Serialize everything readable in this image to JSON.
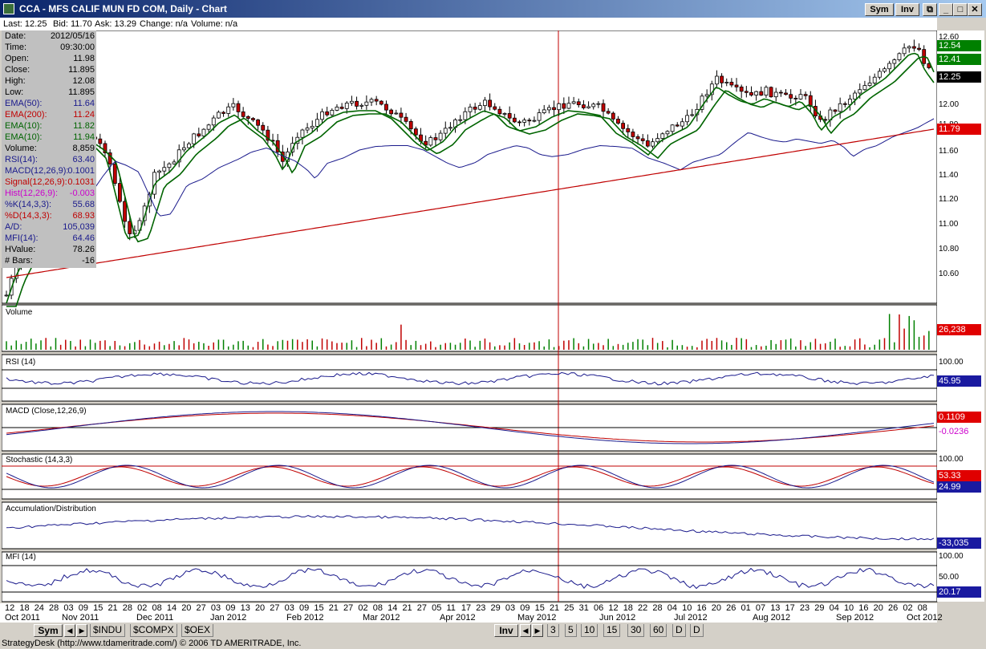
{
  "window": {
    "title": "CCA - MFS CALIF MUN FD COM, Daily - Chart",
    "sym_button": "Sym",
    "inv_button": "Inv"
  },
  "quote": {
    "last": "Last: 12.25",
    "bid": "Bid: 11.70",
    "ask": "Ask: 13.29",
    "change": "Change: n/a",
    "volume": "Volume: n/a"
  },
  "data_panel": [
    {
      "label": "Date:",
      "value": "2012/05/16",
      "color": "#000000"
    },
    {
      "label": "Time:",
      "value": "09:30:00",
      "color": "#000000"
    },
    {
      "label": "Open:",
      "value": "11.98",
      "color": "#000000"
    },
    {
      "label": "Close:",
      "value": "11.895",
      "color": "#000000"
    },
    {
      "label": "High:",
      "value": "12.08",
      "color": "#000000"
    },
    {
      "label": "Low:",
      "value": "11.895",
      "color": "#000000"
    },
    {
      "label": "EMA(50):",
      "value": "11.64",
      "color": "#1a1a8c"
    },
    {
      "label": "EMA(200):",
      "value": "11.24",
      "color": "#c00000"
    },
    {
      "label": "EMA(10):",
      "value": "11.82",
      "color": "#006400"
    },
    {
      "label": "EMA(10):",
      "value": "11.94",
      "color": "#006400"
    },
    {
      "label": "Volume:",
      "value": "8,859",
      "color": "#000000"
    },
    {
      "label": "RSI(14):",
      "value": "63.40",
      "color": "#1a1a8c"
    },
    {
      "label": "MACD(12,26,9):",
      "value": "0.1001",
      "color": "#1a1a8c"
    },
    {
      "label": "Signal(12,26,9):",
      "value": "0.1031",
      "color": "#c00000"
    },
    {
      "label": "Hist(12,26,9):",
      "value": "-0.003",
      "color": "#cc00cc"
    },
    {
      "label": "%K(14,3,3):",
      "value": "55.68",
      "color": "#1a1a8c"
    },
    {
      "label": "%D(14,3,3):",
      "value": "68.93",
      "color": "#c00000"
    },
    {
      "label": "A/D:",
      "value": "105,039",
      "color": "#1a1a8c"
    },
    {
      "label": "MFI(14):",
      "value": "64.46",
      "color": "#1a1a8c"
    },
    {
      "label": "HValue:",
      "value": "78.26",
      "color": "#000000"
    },
    {
      "label": "# Bars:",
      "value": "-16",
      "color": "#000000"
    }
  ],
  "price_panel": {
    "scale": [
      "12.60",
      "12.40",
      "12.20",
      "12.00",
      "11.80",
      "11.60",
      "11.40",
      "11.20",
      "11.00",
      "10.80",
      "10.60"
    ],
    "badges": [
      {
        "text": "12.54",
        "bg": "#008000",
        "fg": "#ffffff"
      },
      {
        "text": "12.41",
        "bg": "#008000",
        "fg": "#ffffff"
      },
      {
        "text": "12.25",
        "bg": "#000000",
        "fg": "#ffffff"
      },
      {
        "text": "11.79",
        "bg": "#e00000",
        "fg": "#ffffff"
      }
    ]
  },
  "volume_panel": {
    "label": "Volume",
    "badge": "26,238"
  },
  "rsi_panel": {
    "label": "RSI (14)",
    "scale_top": "100.00",
    "badge": "45.95"
  },
  "macd_panel": {
    "label": "MACD (Close,12,26,9)",
    "badge_signal": "0.1109",
    "badge_hist": "-0.0236"
  },
  "stoch_panel": {
    "label": "Stochastic (14,3,3)",
    "scale_top": "100.00",
    "badge_d": "53.33",
    "badge_k": "24.99"
  },
  "ad_panel": {
    "label": "Accumulation/Distribution",
    "badge": "-33,035"
  },
  "mfi_panel": {
    "label": "MFI (14)",
    "scale_top": "100.00",
    "scale_mid": "50.00",
    "badge": "20.17"
  },
  "date_axis": {
    "days": [
      "12",
      "18",
      "24",
      "28",
      "03",
      "09",
      "15",
      "21",
      "28",
      "02",
      "08",
      "14",
      "20",
      "27",
      "03",
      "09",
      "13",
      "20",
      "27",
      "03",
      "09",
      "15",
      "21",
      "27",
      "02",
      "08",
      "14",
      "21",
      "27",
      "05",
      "11",
      "17",
      "23",
      "29",
      "03",
      "09",
      "15",
      "21",
      "25",
      "31",
      "06",
      "12",
      "18",
      "22",
      "28",
      "04",
      "10",
      "16",
      "20",
      "26",
      "01",
      "07",
      "13",
      "17",
      "23",
      "29",
      "04",
      "10",
      "16",
      "20",
      "26",
      "02",
      "08"
    ],
    "months": [
      "Oct 2011",
      "Nov 2011",
      "Dec 2011",
      "Jan 2012",
      "Feb 2012",
      "Mar 2012",
      "Apr 2012",
      "May 2012",
      "Jun 2012",
      "Jul 2012",
      "Aug 2012",
      "Sep 2012",
      "Oct 2012"
    ]
  },
  "bottom_bar": {
    "sym": "Sym",
    "tabs": [
      "$INDU",
      "$COMPX",
      "$OEX"
    ],
    "inv": "Inv",
    "intervals": [
      "3",
      "5",
      "10",
      "15",
      "30",
      "60",
      "D",
      "D"
    ]
  },
  "status": "StrategyDesk (http://www.tdameritrade.com/) © 2006 TD AMERITRADE, Inc.",
  "colors": {
    "ema50": "#1a1a8c",
    "ema200": "#c00000",
    "ema10": "#006400",
    "cursor": "#c00000",
    "up_candle": "#ffffff",
    "down_candle": "#c00000"
  }
}
